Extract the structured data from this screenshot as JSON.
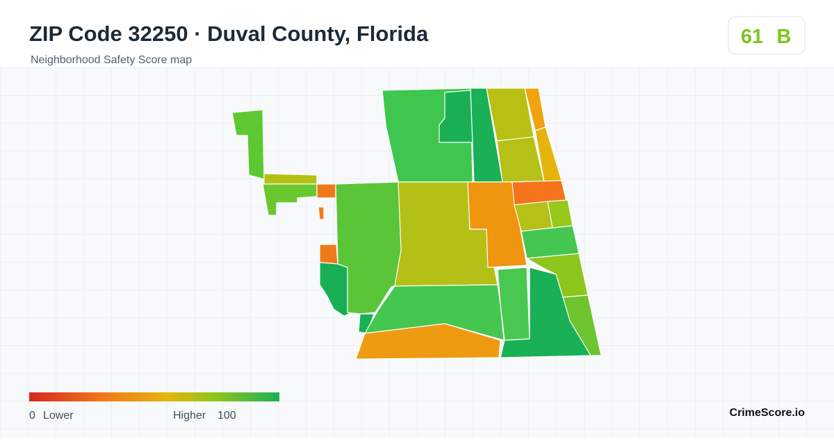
{
  "header": {
    "title": "ZIP Code 32250 · Duval County, Florida",
    "subtitle": "Neighborhood Safety Score map"
  },
  "score": {
    "value": "61",
    "grade": "B"
  },
  "legend": {
    "min": "0",
    "min_label": "Lower",
    "max_label": "Higher",
    "max": "100"
  },
  "brand": "CrimeScore.io"
}
